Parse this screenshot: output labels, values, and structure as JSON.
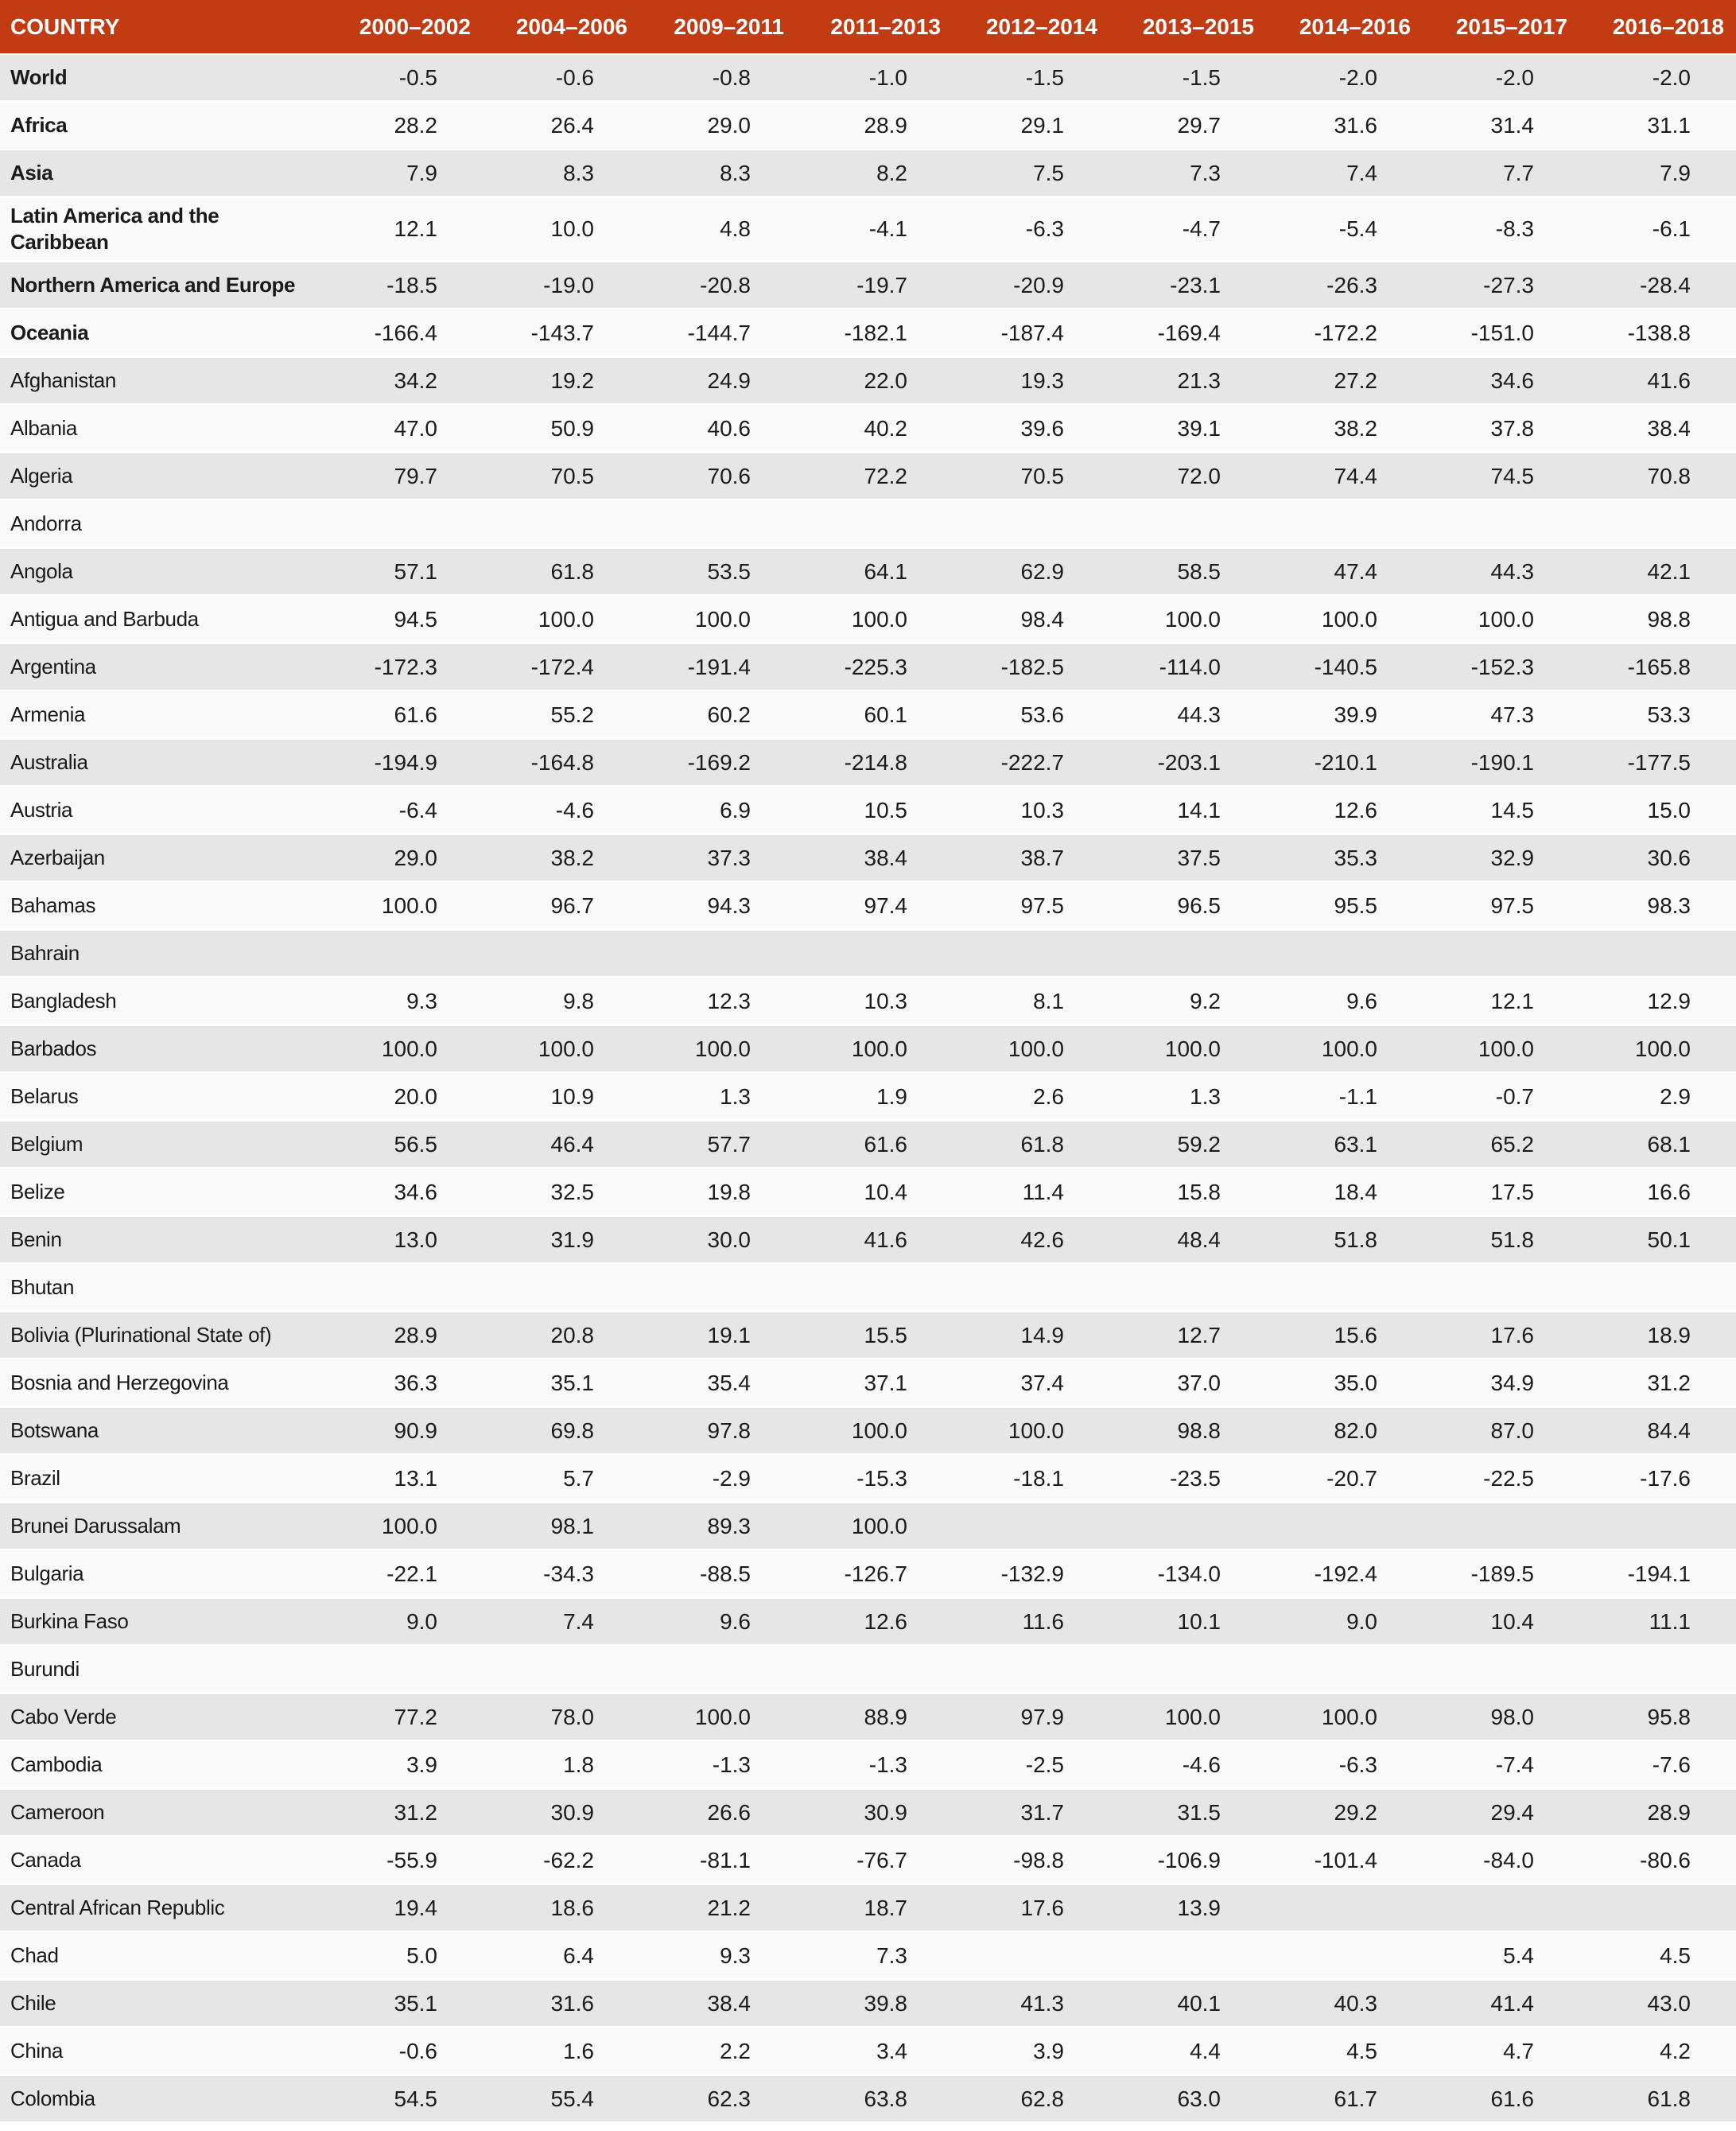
{
  "colors": {
    "header_bg": "#C23B12",
    "header_text": "#FFFFFF",
    "row_alt_bg": "#E6E6E6",
    "row_base_bg": "#FAFAFA",
    "text": "#1A1A1A"
  },
  "chart_data": {
    "type": "table",
    "columns": [
      "COUNTRY",
      "2000–2002",
      "2004–2006",
      "2009–2011",
      "2011–2013",
      "2012–2014",
      "2013–2015",
      "2014–2016",
      "2015–2017",
      "2016–2018"
    ],
    "rows": [
      {
        "country": "World",
        "bold": true,
        "values": [
          "-0.5",
          "-0.6",
          "-0.8",
          "-1.0",
          "-1.5",
          "-1.5",
          "-2.0",
          "-2.0",
          "-2.0"
        ]
      },
      {
        "country": "Africa",
        "bold": true,
        "values": [
          "28.2",
          "26.4",
          "29.0",
          "28.9",
          "29.1",
          "29.7",
          "31.6",
          "31.4",
          "31.1"
        ]
      },
      {
        "country": "Asia",
        "bold": true,
        "values": [
          "7.9",
          "8.3",
          "8.3",
          "8.2",
          "7.5",
          "7.3",
          "7.4",
          "7.7",
          "7.9"
        ]
      },
      {
        "country": "Latin America and the Caribbean",
        "bold": true,
        "values": [
          "12.1",
          "10.0",
          "4.8",
          "-4.1",
          "-6.3",
          "-4.7",
          "-5.4",
          "-8.3",
          "-6.1"
        ]
      },
      {
        "country": "Northern America and Europe",
        "bold": true,
        "values": [
          "-18.5",
          "-19.0",
          "-20.8",
          "-19.7",
          "-20.9",
          "-23.1",
          "-26.3",
          "-27.3",
          "-28.4"
        ]
      },
      {
        "country": "Oceania",
        "bold": true,
        "values": [
          "-166.4",
          "-143.7",
          "-144.7",
          "-182.1",
          "-187.4",
          "-169.4",
          "-172.2",
          "-151.0",
          "-138.8"
        ]
      },
      {
        "country": "Afghanistan",
        "bold": false,
        "values": [
          "34.2",
          "19.2",
          "24.9",
          "22.0",
          "19.3",
          "21.3",
          "27.2",
          "34.6",
          "41.6"
        ]
      },
      {
        "country": "Albania",
        "bold": false,
        "values": [
          "47.0",
          "50.9",
          "40.6",
          "40.2",
          "39.6",
          "39.1",
          "38.2",
          "37.8",
          "38.4"
        ]
      },
      {
        "country": "Algeria",
        "bold": false,
        "values": [
          "79.7",
          "70.5",
          "70.6",
          "72.2",
          "70.5",
          "72.0",
          "74.4",
          "74.5",
          "70.8"
        ]
      },
      {
        "country": "Andorra",
        "bold": false,
        "values": [
          "",
          "",
          "",
          "",
          "",
          "",
          "",
          "",
          ""
        ]
      },
      {
        "country": "Angola",
        "bold": false,
        "values": [
          "57.1",
          "61.8",
          "53.5",
          "64.1",
          "62.9",
          "58.5",
          "47.4",
          "44.3",
          "42.1"
        ]
      },
      {
        "country": "Antigua and Barbuda",
        "bold": false,
        "values": [
          "94.5",
          "100.0",
          "100.0",
          "100.0",
          "98.4",
          "100.0",
          "100.0",
          "100.0",
          "98.8"
        ]
      },
      {
        "country": "Argentina",
        "bold": false,
        "values": [
          "-172.3",
          "-172.4",
          "-191.4",
          "-225.3",
          "-182.5",
          "-114.0",
          "-140.5",
          "-152.3",
          "-165.8"
        ]
      },
      {
        "country": "Armenia",
        "bold": false,
        "values": [
          "61.6",
          "55.2",
          "60.2",
          "60.1",
          "53.6",
          "44.3",
          "39.9",
          "47.3",
          "53.3"
        ]
      },
      {
        "country": "Australia",
        "bold": false,
        "values": [
          "-194.9",
          "-164.8",
          "-169.2",
          "-214.8",
          "-222.7",
          "-203.1",
          "-210.1",
          "-190.1",
          "-177.5"
        ]
      },
      {
        "country": "Austria",
        "bold": false,
        "values": [
          "-6.4",
          "-4.6",
          "6.9",
          "10.5",
          "10.3",
          "14.1",
          "12.6",
          "14.5",
          "15.0"
        ]
      },
      {
        "country": "Azerbaijan",
        "bold": false,
        "values": [
          "29.0",
          "38.2",
          "37.3",
          "38.4",
          "38.7",
          "37.5",
          "35.3",
          "32.9",
          "30.6"
        ]
      },
      {
        "country": "Bahamas",
        "bold": false,
        "values": [
          "100.0",
          "96.7",
          "94.3",
          "97.4",
          "97.5",
          "96.5",
          "95.5",
          "97.5",
          "98.3"
        ]
      },
      {
        "country": "Bahrain",
        "bold": false,
        "values": [
          "",
          "",
          "",
          "",
          "",
          "",
          "",
          "",
          ""
        ]
      },
      {
        "country": "Bangladesh",
        "bold": false,
        "values": [
          "9.3",
          "9.8",
          "12.3",
          "10.3",
          "8.1",
          "9.2",
          "9.6",
          "12.1",
          "12.9"
        ]
      },
      {
        "country": "Barbados",
        "bold": false,
        "values": [
          "100.0",
          "100.0",
          "100.0",
          "100.0",
          "100.0",
          "100.0",
          "100.0",
          "100.0",
          "100.0"
        ]
      },
      {
        "country": "Belarus",
        "bold": false,
        "values": [
          "20.0",
          "10.9",
          "1.3",
          "1.9",
          "2.6",
          "1.3",
          "-1.1",
          "-0.7",
          "2.9"
        ]
      },
      {
        "country": "Belgium",
        "bold": false,
        "values": [
          "56.5",
          "46.4",
          "57.7",
          "61.6",
          "61.8",
          "59.2",
          "63.1",
          "65.2",
          "68.1"
        ]
      },
      {
        "country": "Belize",
        "bold": false,
        "values": [
          "34.6",
          "32.5",
          "19.8",
          "10.4",
          "11.4",
          "15.8",
          "18.4",
          "17.5",
          "16.6"
        ]
      },
      {
        "country": "Benin",
        "bold": false,
        "values": [
          "13.0",
          "31.9",
          "30.0",
          "41.6",
          "42.6",
          "48.4",
          "51.8",
          "51.8",
          "50.1"
        ]
      },
      {
        "country": "Bhutan",
        "bold": false,
        "values": [
          "",
          "",
          "",
          "",
          "",
          "",
          "",
          "",
          ""
        ]
      },
      {
        "country": "Bolivia (Plurinational State of)",
        "bold": false,
        "values": [
          "28.9",
          "20.8",
          "19.1",
          "15.5",
          "14.9",
          "12.7",
          "15.6",
          "17.6",
          "18.9"
        ]
      },
      {
        "country": "Bosnia and Herzegovina",
        "bold": false,
        "values": [
          "36.3",
          "35.1",
          "35.4",
          "37.1",
          "37.4",
          "37.0",
          "35.0",
          "34.9",
          "31.2"
        ]
      },
      {
        "country": "Botswana",
        "bold": false,
        "values": [
          "90.9",
          "69.8",
          "97.8",
          "100.0",
          "100.0",
          "98.8",
          "82.0",
          "87.0",
          "84.4"
        ]
      },
      {
        "country": "Brazil",
        "bold": false,
        "values": [
          "13.1",
          "5.7",
          "-2.9",
          "-15.3",
          "-18.1",
          "-23.5",
          "-20.7",
          "-22.5",
          "-17.6"
        ]
      },
      {
        "country": "Brunei Darussalam",
        "bold": false,
        "values": [
          "100.0",
          "98.1",
          "89.3",
          "100.0",
          "",
          "",
          "",
          "",
          ""
        ]
      },
      {
        "country": "Bulgaria",
        "bold": false,
        "values": [
          "-22.1",
          "-34.3",
          "-88.5",
          "-126.7",
          "-132.9",
          "-134.0",
          "-192.4",
          "-189.5",
          "-194.1"
        ]
      },
      {
        "country": "Burkina Faso",
        "bold": false,
        "values": [
          "9.0",
          "7.4",
          "9.6",
          "12.6",
          "11.6",
          "10.1",
          "9.0",
          "10.4",
          "11.1"
        ]
      },
      {
        "country": "Burundi",
        "bold": false,
        "values": [
          "",
          "",
          "",
          "",
          "",
          "",
          "",
          "",
          ""
        ]
      },
      {
        "country": "Cabo Verde",
        "bold": false,
        "values": [
          "77.2",
          "78.0",
          "100.0",
          "88.9",
          "97.9",
          "100.0",
          "100.0",
          "98.0",
          "95.8"
        ]
      },
      {
        "country": "Cambodia",
        "bold": false,
        "values": [
          "3.9",
          "1.8",
          "-1.3",
          "-1.3",
          "-2.5",
          "-4.6",
          "-6.3",
          "-7.4",
          "-7.6"
        ]
      },
      {
        "country": "Cameroon",
        "bold": false,
        "values": [
          "31.2",
          "30.9",
          "26.6",
          "30.9",
          "31.7",
          "31.5",
          "29.2",
          "29.4",
          "28.9"
        ]
      },
      {
        "country": "Canada",
        "bold": false,
        "values": [
          "-55.9",
          "-62.2",
          "-81.1",
          "-76.7",
          "-98.8",
          "-106.9",
          "-101.4",
          "-84.0",
          "-80.6"
        ]
      },
      {
        "country": "Central African Republic",
        "bold": false,
        "values": [
          "19.4",
          "18.6",
          "21.2",
          "18.7",
          "17.6",
          "13.9",
          "",
          "",
          ""
        ]
      },
      {
        "country": "Chad",
        "bold": false,
        "values": [
          "5.0",
          "6.4",
          "9.3",
          "7.3",
          "",
          "",
          "",
          "5.4",
          "4.5"
        ]
      },
      {
        "country": "Chile",
        "bold": false,
        "values": [
          "35.1",
          "31.6",
          "38.4",
          "39.8",
          "41.3",
          "40.1",
          "40.3",
          "41.4",
          "43.0"
        ]
      },
      {
        "country": "China",
        "bold": false,
        "values": [
          "-0.6",
          "1.6",
          "2.2",
          "3.4",
          "3.9",
          "4.4",
          "4.5",
          "4.7",
          "4.2"
        ]
      },
      {
        "country": "Colombia",
        "bold": false,
        "values": [
          "54.5",
          "55.4",
          "62.3",
          "63.8",
          "62.8",
          "63.0",
          "61.7",
          "61.6",
          "61.8"
        ]
      }
    ]
  }
}
